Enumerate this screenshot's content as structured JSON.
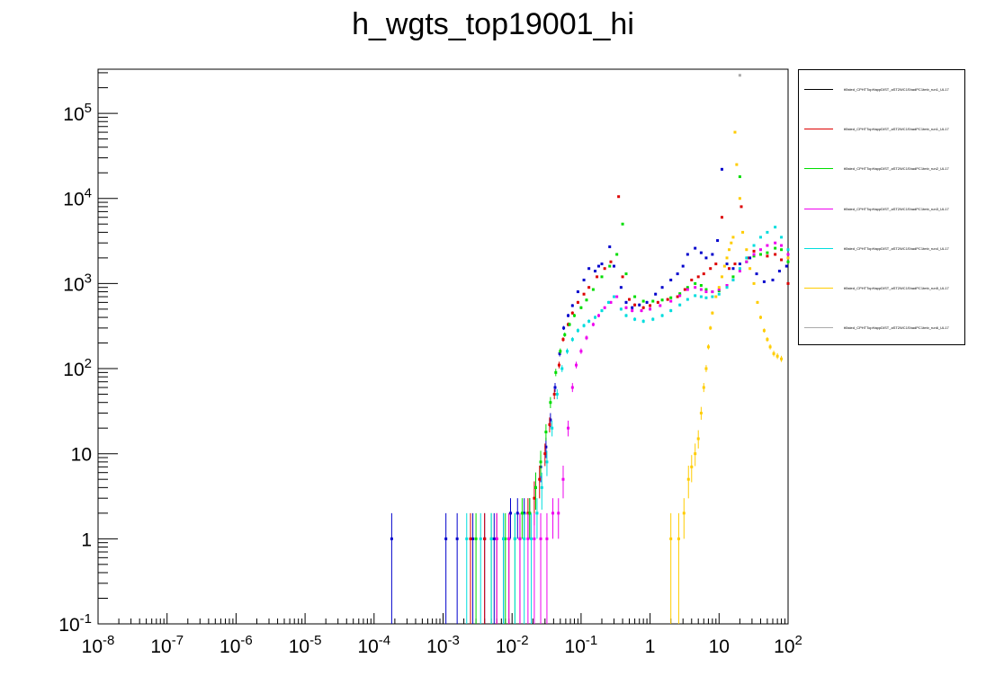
{
  "title": "h_wgts_top19001_hi",
  "chart_data": {
    "type": "scatter",
    "title": "h_wgts_top19001_hi",
    "xlabel": "",
    "ylabel": "",
    "x_scale": "log",
    "y_scale": "log",
    "xlim": [
      1e-08,
      100
    ],
    "ylim": [
      0.1,
      330000
    ],
    "grid": false,
    "legend_position": "right",
    "x_tick_labels": [
      "10^-8",
      "10^-7",
      "10^-6",
      "10^-5",
      "10^-4",
      "10^-3",
      "10^-2",
      "10^-1",
      "1",
      "10",
      "10^2"
    ],
    "y_tick_labels": [
      "10^-1",
      "1",
      "10",
      "10^2",
      "10^3",
      "10^4",
      "10^5"
    ],
    "series": [
      {
        "color": "#0000cc",
        "points": [
          [
            0.00018,
            1
          ],
          [
            0.0011,
            1
          ],
          [
            0.0016,
            1
          ],
          [
            0.0027,
            1
          ],
          [
            0.004,
            1
          ],
          [
            0.0055,
            1
          ],
          [
            0.0075,
            1
          ],
          [
            0.0095,
            2
          ],
          [
            0.012,
            2
          ],
          [
            0.015,
            2
          ],
          [
            0.018,
            2
          ],
          [
            0.022,
            4
          ],
          [
            0.026,
            7
          ],
          [
            0.031,
            12
          ],
          [
            0.036,
            25
          ],
          [
            0.042,
            60
          ],
          [
            0.049,
            150
          ],
          [
            0.056,
            300
          ],
          [
            0.065,
            420
          ],
          [
            0.075,
            550
          ],
          [
            0.09,
            800
          ],
          [
            0.11,
            1100
          ],
          [
            0.13,
            1500
          ],
          [
            0.16,
            1400
          ],
          [
            0.18,
            1600
          ],
          [
            0.2,
            1700
          ],
          [
            0.26,
            2700
          ],
          [
            0.3,
            1600
          ],
          [
            0.38,
            900
          ],
          [
            0.45,
            600
          ],
          [
            0.55,
            520
          ],
          [
            0.7,
            560
          ],
          [
            0.9,
            600
          ],
          [
            1.2,
            750
          ],
          [
            1.5,
            900
          ],
          [
            2,
            1100
          ],
          [
            2.5,
            1300
          ],
          [
            3,
            1600
          ],
          [
            3.5,
            2200
          ],
          [
            4.5,
            2600
          ],
          [
            5.5,
            2300
          ],
          [
            6.5,
            2000
          ],
          [
            8,
            2200
          ],
          [
            9.5,
            3200
          ],
          [
            11,
            22000
          ],
          [
            13,
            1700
          ],
          [
            16,
            1500
          ],
          [
            20,
            1700
          ],
          [
            28,
            2000
          ],
          [
            35,
            1300
          ],
          [
            45,
            1050
          ],
          [
            60,
            1100
          ],
          [
            75,
            1400
          ],
          [
            95,
            1600
          ]
        ]
      },
      {
        "color": "#dd0000",
        "points": [
          [
            0.0025,
            1
          ],
          [
            0.004,
            1
          ],
          [
            0.006,
            1
          ],
          [
            0.009,
            1
          ],
          [
            0.013,
            1
          ],
          [
            0.017,
            2
          ],
          [
            0.021,
            3
          ],
          [
            0.025,
            5
          ],
          [
            0.03,
            10
          ],
          [
            0.035,
            22
          ],
          [
            0.041,
            50
          ],
          [
            0.048,
            110
          ],
          [
            0.055,
            220
          ],
          [
            0.065,
            330
          ],
          [
            0.075,
            450
          ],
          [
            0.09,
            600
          ],
          [
            0.11,
            750
          ],
          [
            0.13,
            900
          ],
          [
            0.17,
            1200
          ],
          [
            0.22,
            1500
          ],
          [
            0.27,
            1800
          ],
          [
            0.35,
            10500
          ],
          [
            0.4,
            1200
          ],
          [
            0.5,
            650
          ],
          [
            0.6,
            560
          ],
          [
            0.8,
            520
          ],
          [
            1,
            550
          ],
          [
            1.3,
            600
          ],
          [
            1.8,
            650
          ],
          [
            2.5,
            700
          ],
          [
            3.2,
            850
          ],
          [
            4,
            1100
          ],
          [
            5,
            1200
          ],
          [
            6,
            1300
          ],
          [
            7.5,
            1500
          ],
          [
            9,
            1700
          ],
          [
            11,
            6000
          ],
          [
            14,
            1500
          ],
          [
            17,
            1700
          ],
          [
            21,
            8000
          ],
          [
            26,
            2000
          ],
          [
            32,
            2400
          ],
          [
            40,
            2200
          ],
          [
            50,
            2100
          ],
          [
            65,
            2200
          ],
          [
            80,
            1900
          ],
          [
            100,
            1000
          ]
        ]
      },
      {
        "color": "#00dd00",
        "points": [
          [
            0.003,
            1
          ],
          [
            0.005,
            1
          ],
          [
            0.008,
            1
          ],
          [
            0.011,
            1
          ],
          [
            0.014,
            2
          ],
          [
            0.018,
            2
          ],
          [
            0.022,
            4
          ],
          [
            0.026,
            8
          ],
          [
            0.031,
            18
          ],
          [
            0.036,
            40
          ],
          [
            0.043,
            90
          ],
          [
            0.05,
            160
          ],
          [
            0.058,
            250
          ],
          [
            0.068,
            330
          ],
          [
            0.08,
            420
          ],
          [
            0.1,
            520
          ],
          [
            0.12,
            640
          ],
          [
            0.15,
            850
          ],
          [
            0.2,
            1200
          ],
          [
            0.26,
            1600
          ],
          [
            0.33,
            2200
          ],
          [
            0.4,
            5000
          ],
          [
            0.45,
            1300
          ],
          [
            0.6,
            700
          ],
          [
            0.8,
            620
          ],
          [
            1.1,
            620
          ],
          [
            1.5,
            640
          ],
          [
            2,
            680
          ],
          [
            2.7,
            760
          ],
          [
            3.5,
            900
          ],
          [
            4.5,
            1000
          ],
          [
            5.5,
            950
          ],
          [
            6.5,
            850
          ],
          [
            8,
            800
          ],
          [
            10,
            820
          ],
          [
            13,
            950
          ],
          [
            16,
            1200
          ],
          [
            20,
            18000
          ],
          [
            25,
            1800
          ],
          [
            32,
            2100
          ],
          [
            40,
            2200
          ],
          [
            50,
            2300
          ],
          [
            65,
            2600
          ],
          [
            80,
            2500
          ],
          [
            100,
            1800
          ]
        ]
      },
      {
        "color": "#ee00ee",
        "points": [
          [
            0.006,
            1
          ],
          [
            0.009,
            1
          ],
          [
            0.013,
            1
          ],
          [
            0.017,
            1
          ],
          [
            0.021,
            1
          ],
          [
            0.026,
            1
          ],
          [
            0.032,
            1
          ],
          [
            0.039,
            2
          ],
          [
            0.047,
            2
          ],
          [
            0.055,
            5
          ],
          [
            0.065,
            20
          ],
          [
            0.075,
            60
          ],
          [
            0.085,
            110
          ],
          [
            0.1,
            160
          ],
          [
            0.12,
            230
          ],
          [
            0.15,
            330
          ],
          [
            0.18,
            420
          ],
          [
            0.22,
            520
          ],
          [
            0.27,
            600
          ],
          [
            0.33,
            700
          ],
          [
            0.45,
            520
          ],
          [
            0.55,
            480
          ],
          [
            0.75,
            480
          ],
          [
            1,
            500
          ],
          [
            1.4,
            550
          ],
          [
            2,
            620
          ],
          [
            2.7,
            720
          ],
          [
            3.5,
            850
          ],
          [
            4.5,
            900
          ],
          [
            5.5,
            850
          ],
          [
            6.5,
            800
          ],
          [
            8,
            800
          ],
          [
            10,
            850
          ],
          [
            13,
            950
          ],
          [
            16,
            1100
          ],
          [
            20,
            1400
          ],
          [
            25,
            1800
          ],
          [
            32,
            2200
          ],
          [
            40,
            2500
          ],
          [
            50,
            2800
          ],
          [
            65,
            3000
          ],
          [
            80,
            2800
          ],
          [
            100,
            2200
          ]
        ]
      },
      {
        "color": "#00dddd",
        "points": [
          [
            0.0022,
            1
          ],
          [
            0.0035,
            1
          ],
          [
            0.005,
            1
          ],
          [
            0.0075,
            1
          ],
          [
            0.011,
            1
          ],
          [
            0.015,
            1
          ],
          [
            0.019,
            1
          ],
          [
            0.023,
            2
          ],
          [
            0.027,
            4
          ],
          [
            0.032,
            8
          ],
          [
            0.038,
            20
          ],
          [
            0.045,
            50
          ],
          [
            0.053,
            100
          ],
          [
            0.063,
            160
          ],
          [
            0.075,
            220
          ],
          [
            0.09,
            280
          ],
          [
            0.11,
            320
          ],
          [
            0.13,
            360
          ],
          [
            0.16,
            400
          ],
          [
            0.2,
            480
          ],
          [
            0.25,
            600
          ],
          [
            0.3,
            700
          ],
          [
            0.38,
            500
          ],
          [
            0.45,
            420
          ],
          [
            0.6,
            380
          ],
          [
            0.8,
            360
          ],
          [
            1.1,
            380
          ],
          [
            1.5,
            420
          ],
          [
            2,
            480
          ],
          [
            2.7,
            560
          ],
          [
            3.5,
            650
          ],
          [
            4.5,
            720
          ],
          [
            5.5,
            700
          ],
          [
            6.5,
            680
          ],
          [
            8,
            700
          ],
          [
            10,
            750
          ],
          [
            13,
            900
          ],
          [
            16,
            1100
          ],
          [
            20,
            1500
          ],
          [
            25,
            2000
          ],
          [
            32,
            2800
          ],
          [
            40,
            3500
          ],
          [
            50,
            4000
          ],
          [
            65,
            4600
          ],
          [
            80,
            3500
          ],
          [
            100,
            2500
          ]
        ]
      },
      {
        "color": "#ffcc00",
        "points": [
          [
            2,
            1
          ],
          [
            2.6,
            1
          ],
          [
            3.1,
            2
          ],
          [
            3.6,
            5
          ],
          [
            4,
            7
          ],
          [
            4.5,
            10
          ],
          [
            5,
            15
          ],
          [
            5.5,
            30
          ],
          [
            6,
            60
          ],
          [
            6.5,
            100
          ],
          [
            7,
            180
          ],
          [
            7.5,
            300
          ],
          [
            8,
            450
          ],
          [
            9,
            700
          ],
          [
            10,
            900
          ],
          [
            11,
            1200
          ],
          [
            12,
            1600
          ],
          [
            13,
            2000
          ],
          [
            14,
            2500
          ],
          [
            15,
            3000
          ],
          [
            16,
            3500
          ],
          [
            17,
            60000
          ],
          [
            18,
            25000
          ],
          [
            20,
            10000
          ],
          [
            22,
            4000
          ],
          [
            25,
            2500
          ],
          [
            28,
            1500
          ],
          [
            32,
            1000
          ],
          [
            36,
            600
          ],
          [
            40,
            400
          ],
          [
            45,
            280
          ],
          [
            50,
            220
          ],
          [
            55,
            180
          ],
          [
            62,
            150
          ],
          [
            70,
            140
          ],
          [
            80,
            130
          ],
          [
            100,
            2000
          ]
        ]
      },
      {
        "color": "#aaaaaa",
        "points": [
          [
            20,
            280000
          ]
        ]
      }
    ]
  },
  "legend": {
    "entries": [
      {
        "label": "tt5sted_CPHTTopHappDIST_aST2WC1ShadPC1tmb_run1_UL17",
        "color": "#000000"
      },
      {
        "label": "tt5sted_CPHTTopHappDIST_aST2WC1ShadPC1tmb_run1_UL17",
        "color": "#dd0000"
      },
      {
        "label": "tt5sted_CPHTTopHappDIST_aST2WC1ShadPC1tmb_run2_UL17",
        "color": "#00dd00"
      },
      {
        "label": "tt5sted_CPHTTopHappDIST_aST2WC1ShadPC1tmb_run3_UL17",
        "color": "#ee00ee"
      },
      {
        "label": "tt5sted_CPHTTopHappDIST_aST2WC1ShadPC1tmb_run4_UL17",
        "color": "#00dddd"
      },
      {
        "label": "tt5sted_CPHTTopHappDIST_aST2WC1ShadPC1tmb_run5_UL17",
        "color": "#ffcc00"
      },
      {
        "label": "tt5sted_CPHTTopHappDIST_aST2WC1ShadPC1tmb_run6_UL17",
        "color": "#aaaaaa"
      }
    ]
  }
}
